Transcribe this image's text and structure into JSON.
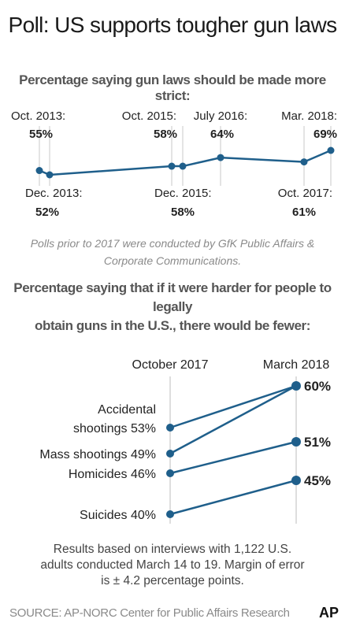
{
  "title": "Poll: US supports tougher gun laws",
  "chart_data": [
    {
      "type": "line",
      "title": "Percentage saying gun laws should be made more strict:",
      "x": [
        "Oct. 2013:",
        "Dec. 2013:",
        "Oct. 2015:",
        "Dec. 2015:",
        "July 2016:",
        "Oct. 2017:",
        "Mar. 2018:"
      ],
      "values": [
        55,
        52,
        58,
        58,
        64,
        61,
        69
      ],
      "value_labels": [
        "55%",
        "52%",
        "58%",
        "58%",
        "64%",
        "61%",
        "69%"
      ],
      "label_position": [
        "above",
        "below",
        "above",
        "below",
        "above",
        "below",
        "above"
      ],
      "color": "#1f5f8b"
    },
    {
      "type": "slope",
      "title": "Percentage saying that if it were harder for people to legally obtain guns in the U.S., there would be fewer:",
      "columns": [
        "October 2017",
        "March 2018"
      ],
      "series": [
        {
          "name_lines": [
            "Accidental",
            "shootings 53%"
          ],
          "values": [
            53,
            60
          ]
        },
        {
          "name_lines": [
            "Mass shootings 49%"
          ],
          "values": [
            49,
            60
          ]
        },
        {
          "name_lines": [
            "Homicides 46%"
          ],
          "values": [
            46,
            51
          ]
        },
        {
          "name_lines": [
            "Suicides 40%"
          ],
          "values": [
            40,
            45
          ]
        }
      ],
      "end_labels": [
        "60%",
        "51%",
        "45%"
      ],
      "color": "#1f5f8b"
    }
  ],
  "note_lines": [
    "Polls prior to 2017 were conducted by GfK Public Affairs &",
    "Corporate Communications."
  ],
  "results_lines": [
    "Results based on interviews with 1,122 U.S.",
    "adults conducted March 14 to 19. Margin of error",
    "is ± 4.2 percentage points."
  ],
  "source": "SOURCE: AP-NORC Center for Public Affairs Research",
  "logo": "AP"
}
